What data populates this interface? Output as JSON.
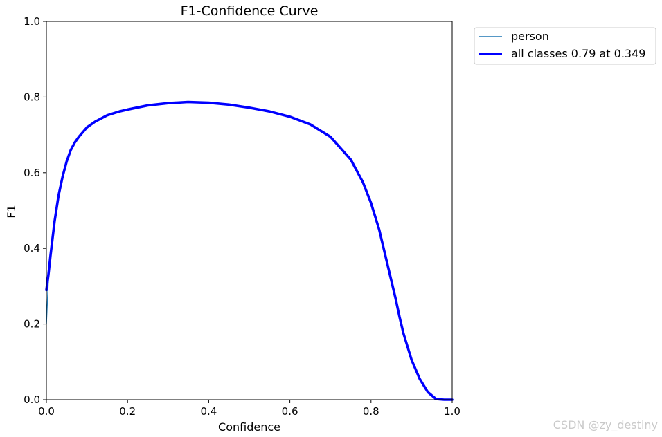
{
  "chart_data": {
    "type": "line",
    "title": "F1-Confidence Curve",
    "xlabel": "Confidence",
    "ylabel": "F1",
    "xlim": [
      0,
      1
    ],
    "ylim": [
      0,
      1
    ],
    "x_ticks": [
      "0.0",
      "0.2",
      "0.4",
      "0.6",
      "0.8",
      "1.0"
    ],
    "y_ticks": [
      "0.0",
      "0.2",
      "0.4",
      "0.6",
      "0.8",
      "1.0"
    ],
    "grid": false,
    "legend_position": "outside-top-right",
    "series": [
      {
        "name": "person",
        "color": "#1f77b4",
        "x": [
          0.0,
          0.005,
          0.01,
          0.02,
          0.03,
          0.04,
          0.05,
          0.06,
          0.07,
          0.08,
          0.1,
          0.12,
          0.15,
          0.18,
          0.2,
          0.25,
          0.3,
          0.349,
          0.4,
          0.45,
          0.5,
          0.55,
          0.6,
          0.65,
          0.7,
          0.75,
          0.78,
          0.8,
          0.82,
          0.84,
          0.86,
          0.87,
          0.88,
          0.9,
          0.92,
          0.94,
          0.96,
          0.98,
          1.0
        ],
        "y": [
          0.2,
          0.32,
          0.38,
          0.47,
          0.54,
          0.59,
          0.63,
          0.66,
          0.68,
          0.695,
          0.72,
          0.735,
          0.752,
          0.762,
          0.767,
          0.778,
          0.784,
          0.787,
          0.785,
          0.78,
          0.772,
          0.762,
          0.748,
          0.728,
          0.695,
          0.635,
          0.575,
          0.52,
          0.45,
          0.36,
          0.27,
          0.22,
          0.175,
          0.105,
          0.055,
          0.02,
          0.002,
          0.0,
          0.0
        ]
      },
      {
        "name": "all classes 0.79 at 0.349",
        "color": "#0000ff",
        "x": [
          0.0,
          0.005,
          0.01,
          0.02,
          0.03,
          0.04,
          0.05,
          0.06,
          0.07,
          0.08,
          0.1,
          0.12,
          0.15,
          0.18,
          0.2,
          0.25,
          0.3,
          0.349,
          0.4,
          0.45,
          0.5,
          0.55,
          0.6,
          0.65,
          0.7,
          0.75,
          0.78,
          0.8,
          0.82,
          0.84,
          0.86,
          0.87,
          0.88,
          0.9,
          0.92,
          0.94,
          0.96,
          0.98,
          1.0
        ],
        "y": [
          0.29,
          0.33,
          0.38,
          0.47,
          0.54,
          0.59,
          0.63,
          0.66,
          0.68,
          0.695,
          0.72,
          0.735,
          0.752,
          0.762,
          0.767,
          0.778,
          0.784,
          0.787,
          0.785,
          0.78,
          0.772,
          0.762,
          0.748,
          0.728,
          0.695,
          0.635,
          0.575,
          0.52,
          0.45,
          0.36,
          0.27,
          0.22,
          0.175,
          0.105,
          0.055,
          0.02,
          0.002,
          0.0,
          0.0
        ]
      }
    ]
  },
  "watermark": "CSDN @zy_destiny"
}
